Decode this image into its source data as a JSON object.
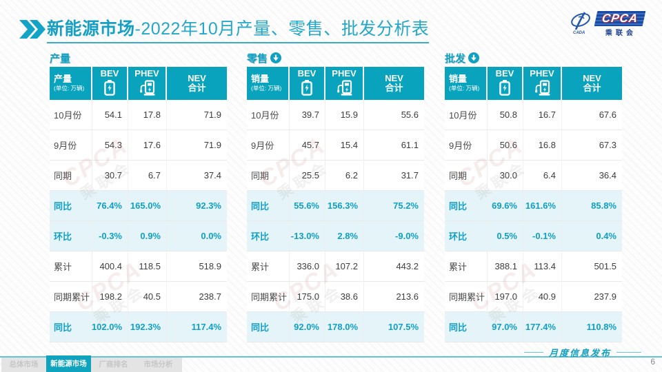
{
  "title": {
    "highlight": "新能源市场",
    "rest": "-2022年10月产量、零售、批发分析表"
  },
  "logo": {
    "cpca": "CPCA",
    "org": "乘联会",
    "emblem": "CADA"
  },
  "watermark": {
    "line1": "CPCA",
    "line2": "乘联会"
  },
  "tables": [
    {
      "section": "产量",
      "header": {
        "label": "产量",
        "unit": "(单位: 万辆)",
        "bev": "BEV",
        "phev": "PHEV",
        "nev_line1": "NEV",
        "nev_line2": "合计"
      },
      "rows": [
        {
          "label": "10月份",
          "bev": "54.1",
          "phev": "17.8",
          "nev": "71.9",
          "type": "normal"
        },
        {
          "label": "9月份",
          "bev": "54.3",
          "phev": "17.6",
          "nev": "71.9",
          "type": "normal"
        },
        {
          "label": "同期",
          "bev": "30.7",
          "phev": "6.7",
          "nev": "37.4",
          "type": "normal"
        },
        {
          "label": "同比",
          "bev": "76.4%",
          "phev": "165.0%",
          "nev": "92.3%",
          "type": "highlight"
        },
        {
          "label": "环比",
          "bev": "-0.3%",
          "phev": "0.9%",
          "nev": "0.0%",
          "type": "highlight"
        },
        {
          "label": "累计",
          "bev": "400.4",
          "phev": "118.5",
          "nev": "518.9",
          "type": "normal"
        },
        {
          "label": "同期累计",
          "bev": "198.2",
          "phev": "40.5",
          "nev": "238.7",
          "type": "normal"
        },
        {
          "label": "同比",
          "bev": "102.0%",
          "phev": "192.3%",
          "nev": "117.4%",
          "type": "highlight"
        }
      ]
    },
    {
      "section": "零售",
      "header": {
        "label": "销量",
        "unit": "(单位: 万辆)",
        "bev": "BEV",
        "phev": "PHEV",
        "nev_line1": "NEV",
        "nev_line2": "合计"
      },
      "rows": [
        {
          "label": "10月份",
          "bev": "39.7",
          "phev": "15.9",
          "nev": "55.6",
          "type": "normal"
        },
        {
          "label": "9月份",
          "bev": "45.7",
          "phev": "15.4",
          "nev": "61.1",
          "type": "normal"
        },
        {
          "label": "同期",
          "bev": "25.5",
          "phev": "6.2",
          "nev": "31.7",
          "type": "normal"
        },
        {
          "label": "同比",
          "bev": "55.6%",
          "phev": "156.3%",
          "nev": "75.2%",
          "type": "highlight"
        },
        {
          "label": "环比",
          "bev": "-13.0%",
          "phev": "2.8%",
          "nev": "-9.0%",
          "type": "highlight"
        },
        {
          "label": "累计",
          "bev": "336.0",
          "phev": "107.2",
          "nev": "443.2",
          "type": "normal"
        },
        {
          "label": "同期累计",
          "bev": "175.0",
          "phev": "38.6",
          "nev": "213.6",
          "type": "normal"
        },
        {
          "label": "同比",
          "bev": "92.0%",
          "phev": "178.0%",
          "nev": "107.5%",
          "type": "highlight"
        }
      ]
    },
    {
      "section": "批发",
      "header": {
        "label": "销量",
        "unit": "(单位: 万辆)",
        "bev": "BEV",
        "phev": "PHEV",
        "nev_line1": "NEV",
        "nev_line2": "合计"
      },
      "rows": [
        {
          "label": "10月份",
          "bev": "50.8",
          "phev": "16.7",
          "nev": "67.6",
          "type": "normal"
        },
        {
          "label": "9月份",
          "bev": "50.6",
          "phev": "16.8",
          "nev": "67.3",
          "type": "normal"
        },
        {
          "label": "同期",
          "bev": "30.0",
          "phev": "6.4",
          "nev": "36.4",
          "type": "normal"
        },
        {
          "label": "同比",
          "bev": "69.6%",
          "phev": "161.6%",
          "nev": "85.8%",
          "type": "highlight"
        },
        {
          "label": "环比",
          "bev": "0.5%",
          "phev": "-0.1%",
          "nev": "0.4%",
          "type": "highlight"
        },
        {
          "label": "累计",
          "bev": "388.1",
          "phev": "113.4",
          "nev": "501.5",
          "type": "normal"
        },
        {
          "label": "同期累计",
          "bev": "197.0",
          "phev": "40.9",
          "nev": "237.9",
          "type": "normal"
        },
        {
          "label": "同比",
          "bev": "97.0%",
          "phev": "177.4%",
          "nev": "110.8%",
          "type": "highlight"
        }
      ]
    }
  ],
  "footer": {
    "tabs": [
      {
        "label": "总体市场"
      },
      {
        "label": "新能源市场"
      },
      {
        "label": "厂商排名"
      },
      {
        "label": "市场分析"
      }
    ],
    "publication": "月度信息发布",
    "page": "6"
  },
  "colors": {
    "teal": "#09a3be",
    "teal_text": "#0f9fc6",
    "highlight_row_bg": "#e5f4f9",
    "logo_blue": "#1b4aa2"
  }
}
